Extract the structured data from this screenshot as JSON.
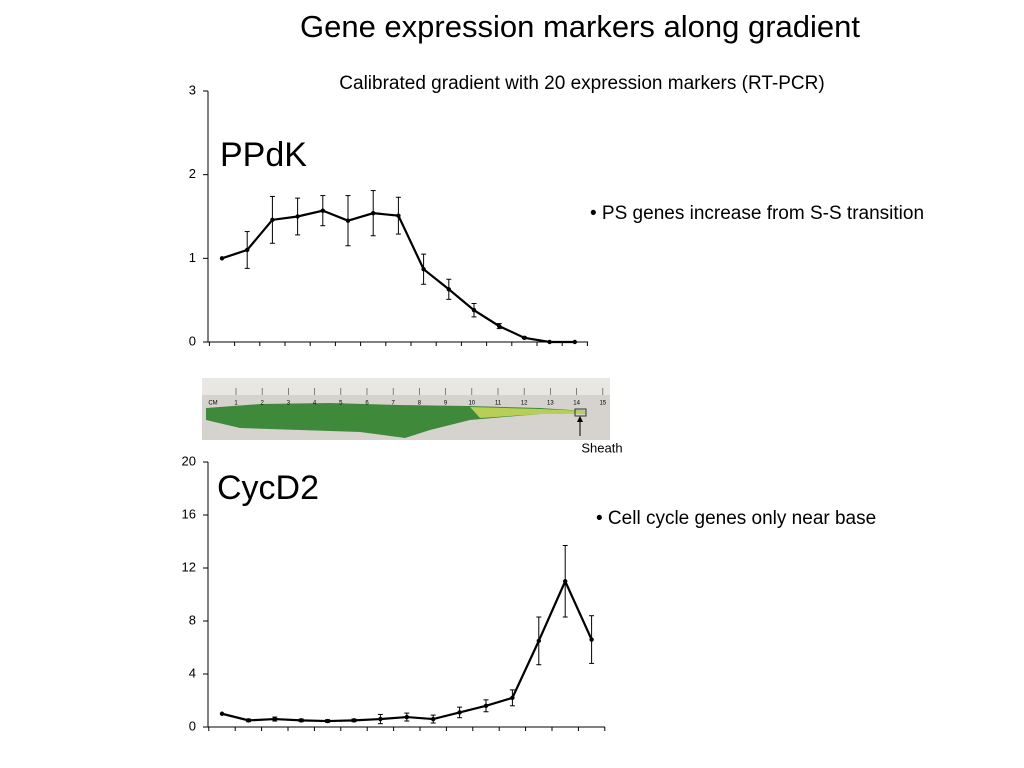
{
  "title": "Gene expression markers along gradient",
  "subtitle": "Calibrated gradient with 20 expression markers (RT-PCR)",
  "ruler": {
    "labels": [
      "CM",
      "1",
      "2",
      "3",
      "4",
      "5",
      "6",
      "7",
      "8",
      "9",
      "10",
      "11",
      "12",
      "13",
      "14",
      "15"
    ],
    "annotation": "Sheath"
  },
  "chart_data": [
    {
      "type": "line",
      "title": "PPdK",
      "annotation": "• PS genes increase from S-S transition",
      "categories": [
        null,
        null,
        null,
        null,
        null,
        null,
        null,
        null,
        null,
        null,
        null,
        null,
        null,
        null,
        null
      ],
      "series": [
        {
          "name": null,
          "color": "#000000",
          "values": [
            1.0,
            1.1,
            1.46,
            1.5,
            1.57,
            1.45,
            1.54,
            1.51,
            0.87,
            0.63,
            0.38,
            0.19,
            0.05,
            0.0,
            0.0
          ],
          "errors": [
            0,
            0.22,
            0.28,
            0.22,
            0.18,
            0.3,
            0.27,
            0.22,
            0.18,
            0.12,
            0.08,
            0.03,
            0.01,
            0,
            0
          ]
        }
      ],
      "ylim": [
        0,
        3
      ],
      "yticks": [
        0,
        1,
        2,
        3
      ]
    },
    {
      "type": "line",
      "title": "CycD2",
      "annotation": "• Cell cycle genes only near base",
      "categories": [
        null,
        null,
        null,
        null,
        null,
        null,
        null,
        null,
        null,
        null,
        null,
        null,
        null,
        null,
        null
      ],
      "series": [
        {
          "name": null,
          "color": "#000000",
          "values": [
            1.0,
            0.5,
            0.6,
            0.5,
            0.45,
            0.5,
            0.6,
            0.75,
            0.6,
            1.1,
            1.6,
            2.2,
            6.5,
            11.0,
            6.6
          ],
          "errors": [
            0,
            0.1,
            0.15,
            0.1,
            0.1,
            0.1,
            0.35,
            0.3,
            0.3,
            0.4,
            0.45,
            0.6,
            1.8,
            2.7,
            1.8
          ]
        }
      ],
      "ylim": [
        0,
        20
      ],
      "yticks": [
        0,
        4,
        8,
        12,
        16,
        20
      ]
    }
  ]
}
